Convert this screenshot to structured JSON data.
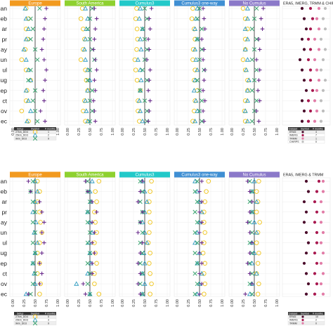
{
  "chart_data": [
    {
      "type": "scatter",
      "panel": "top",
      "months": [
        "an",
        "eb",
        "ar",
        "pr",
        "ay",
        "un",
        "ul",
        "ug",
        "ep",
        "ct",
        "ov",
        "ec"
      ],
      "ticks": [
        "0.00",
        "0.25",
        "0.50",
        "0.75",
        "1.00"
      ],
      "xlim": [
        0,
        1
      ],
      "reference_x": 0.5,
      "facets": [
        {
          "title": "Europe",
          "color": "#f29a1f"
        },
        {
          "title": "South America",
          "color": "#8ed12f"
        },
        {
          "title": "Cumulus3",
          "color": "#22c9c9"
        },
        {
          "title": "Cumulus3 one-way",
          "color": "#3f8fd3"
        },
        {
          "title": "No Cumulus",
          "color": "#8b79c9"
        }
      ],
      "series": [
        {
          "setup": "27km_DD4",
          "symbol": "circle",
          "color": "#f0c419",
          "values": [
            [
              0.3,
              0.35,
              0.3,
              0.33,
              0.28,
              0.2,
              0.3,
              0.4,
              0.32,
              0.3,
              0.2,
              0.35
            ],
            [
              0.33,
              0.3,
              0.35,
              0.38,
              0.35,
              0.3,
              0.4,
              0.42,
              0.45,
              0.38,
              0.35,
              0.4
            ],
            [
              0.32,
              0.3,
              0.33,
              0.34,
              0.32,
              0.28,
              0.3,
              0.33,
              0.4,
              0.35,
              0.35,
              0.38
            ],
            [
              0.35,
              0.33,
              0.38,
              0.4,
              0.36,
              0.35,
              0.4,
              0.38,
              0.45,
              0.4,
              0.38,
              0.35
            ],
            [
              0.25,
              0.3,
              0.35,
              0.3,
              0.3,
              0.25,
              0.3,
              0.35,
              0.35,
              0.3,
              0.28,
              0.3
            ]
          ]
        },
        {
          "setup": "25km_DD3",
          "symbol": "triangle",
          "color": "#2f9bc1",
          "values": [
            [
              0.28,
              0.3,
              0.35,
              0.3,
              0.25,
              0.3,
              0.35,
              0.4,
              0.3,
              0.35,
              0.4,
              0.32
            ],
            [
              0.4,
              0.45,
              0.42,
              0.4,
              0.38,
              0.4,
              0.45,
              0.5,
              0.45,
              0.4,
              0.42,
              0.45
            ],
            [
              0.4,
              0.38,
              0.45,
              0.4,
              0.42,
              0.35,
              0.4,
              0.42,
              0.4,
              0.38,
              0.4,
              0.45
            ],
            [
              0.45,
              0.42,
              0.4,
              0.45,
              0.4,
              0.42,
              0.45,
              0.4,
              0.38,
              0.42,
              0.45,
              0.4
            ],
            [
              0.35,
              0.35,
              0.3,
              0.35,
              0.3,
              0.35,
              0.32,
              0.38,
              0.35,
              0.35,
              0.3,
              0.35
            ]
          ]
        },
        {
          "setup": "9km_DD3",
          "symbol": "cross",
          "color": "#3aa36f",
          "values": [
            [
              0.6,
              0.4,
              0.45,
              0.4,
              0.5,
              0.55,
              0.4,
              0.35,
              0.5,
              0.45,
              0.5,
              0.55
            ],
            [
              0.55,
              0.5,
              0.45,
              0.5,
              0.55,
              0.6,
              0.5,
              0.45,
              0.55,
              0.5,
              0.55,
              0.5
            ],
            [
              0.5,
              0.55,
              0.45,
              0.5,
              0.55,
              0.5,
              0.45,
              0.55,
              0.4,
              0.5,
              0.55,
              0.55
            ],
            [
              0.5,
              0.45,
              0.55,
              0.45,
              0.55,
              0.5,
              0.6,
              0.45,
              0.5,
              0.55,
              0.5,
              0.55
            ],
            [
              0.55,
              0.5,
              0.45,
              0.55,
              0.5,
              0.45,
              0.55,
              0.5,
              0.45,
              0.55,
              0.5,
              0.45
            ]
          ]
        },
        {
          "setup": "9km_DD3 (plus)",
          "symbol": "plus",
          "color": "#6a2c8c",
          "values": [
            [
              0.75,
              0.72,
              0.7,
              0.68,
              0.65,
              0.7,
              0.75,
              0.72,
              0.68,
              0.7,
              0.62,
              0.72
            ],
            [
              0.6,
              0.65,
              0.62,
              0.6,
              0.58,
              0.62,
              0.65,
              0.6,
              0.62,
              0.58,
              0.6,
              0.62
            ],
            [
              0.65,
              0.6,
              0.62,
              0.58,
              0.6,
              0.55,
              0.62,
              0.6,
              0.58,
              0.62,
              0.6,
              0.58
            ],
            [
              0.58,
              0.6,
              0.62,
              0.55,
              0.6,
              0.58,
              0.62,
              0.6,
              0.58,
              0.62,
              0.58,
              0.6
            ],
            [
              0.7,
              0.65,
              0.68,
              0.6,
              0.62,
              0.55,
              0.62,
              0.6,
              0.58,
              0.62,
              0.55,
              0.6
            ]
          ]
        }
      ],
      "legend": {
        "headers": [
          "Setup",
          "Symbol",
          "# months"
        ],
        "rows": [
          {
            "setup": "27km_DD4",
            "count": "1"
          },
          {
            "setup": "25km_DD3",
            "count": "2"
          },
          {
            "setup": "9km_DD3",
            "count": "9"
          }
        ]
      },
      "observations": {
        "title": "ERA5, IMERG, TRMM & CHIRPS",
        "legend_headers": [
          "Dataset",
          "Symbol",
          "# months"
        ],
        "datasets": [
          {
            "name": "ERA5",
            "color": "#4a0a2a",
            "count": "4"
          },
          {
            "name": "IMERG",
            "color": "#a8184f",
            "count": "7"
          },
          {
            "name": "TRMM",
            "color": "#e27ca7",
            "count": "1"
          },
          {
            "name": "CHIRPS",
            "color": "#bdbdbd",
            "count": "0"
          }
        ],
        "values": [
          [
            0.4,
            0.6,
            0.8,
            0.95
          ],
          [
            0.45,
            0.65,
            0.75,
            0.9
          ],
          [
            0.5,
            0.6,
            0.8,
            0.95
          ],
          [
            0.4,
            0.55,
            0.7,
            0.85
          ],
          [
            0.45,
            0.6,
            0.8,
            0.95
          ],
          [
            0.35,
            0.55,
            0.7,
            0.9
          ],
          [
            0.4,
            0.6,
            0.75,
            0.85
          ],
          [
            0.45,
            0.6,
            0.8,
            0.95
          ],
          [
            0.5,
            0.65,
            0.75,
            0.9
          ],
          [
            0.4,
            0.55,
            0.7,
            0.85
          ],
          [
            0.45,
            0.6,
            0.75,
            0.9
          ],
          [
            0.4,
            0.55,
            0.7,
            0.85
          ]
        ]
      }
    },
    {
      "type": "scatter",
      "panel": "bottom",
      "months": [
        "an",
        "eb",
        "ar",
        "pr",
        "ay",
        "un",
        "ul",
        "ug",
        "ep",
        "ct",
        "ov",
        "ec"
      ],
      "ticks": [
        "0.00",
        "0.25",
        "0.50",
        "0.75",
        "1.00"
      ],
      "xlim": [
        0,
        1
      ],
      "reference_x": 0.5,
      "facets": [
        {
          "title": "Europe",
          "color": "#f29a1f"
        },
        {
          "title": "South America",
          "color": "#8ed12f"
        },
        {
          "title": "Cumulus3",
          "color": "#22c9c9"
        },
        {
          "title": "Cumulus3 one-way",
          "color": "#3f8fd3"
        },
        {
          "title": "No Cumulus",
          "color": "#8b79c9"
        }
      ],
      "series": [
        {
          "setup": "27km_DD4",
          "symbol": "circle",
          "color": "#f0c419",
          "values": [
            [
              0.55,
              0.6,
              0.55,
              0.6,
              0.62,
              0.65,
              0.6,
              0.55,
              0.6,
              0.55,
              0.62,
              0.6
            ],
            [
              0.7,
              0.62,
              0.65,
              0.6,
              0.62,
              0.65,
              0.6,
              0.62,
              0.65,
              0.6,
              0.6,
              0.7
            ],
            [
              0.65,
              0.62,
              0.6,
              0.6,
              0.62,
              0.6,
              0.58,
              0.62,
              0.6,
              0.62,
              0.65,
              0.62
            ],
            [
              0.7,
              0.65,
              0.62,
              0.6,
              0.6,
              0.62,
              0.6,
              0.58,
              0.62,
              0.6,
              0.62,
              0.6
            ],
            [
              0.6,
              0.55,
              0.58,
              0.55,
              0.62,
              0.58,
              0.55,
              0.6,
              0.58,
              0.55,
              0.6,
              0.58
            ]
          ]
        },
        {
          "setup": "25km_DD3",
          "symbol": "triangle",
          "color": "#2f9bc1",
          "values": [
            [
              0.5,
              0.55,
              0.5,
              0.45,
              0.52,
              0.48,
              0.55,
              0.5,
              0.45,
              0.48,
              0.5,
              0.3
            ],
            [
              0.55,
              0.5,
              0.52,
              0.45,
              0.5,
              0.55,
              0.48,
              0.5,
              0.52,
              0.45,
              0.2,
              0.5
            ],
            [
              0.45,
              0.5,
              0.55,
              0.5,
              0.45,
              0.5,
              0.55,
              0.48,
              0.5,
              0.45,
              0.5,
              0.45
            ],
            [
              0.4,
              0.45,
              0.5,
              0.55,
              0.5,
              0.45,
              0.4,
              0.5,
              0.45,
              0.55,
              0.5,
              0.45
            ],
            [
              0.5,
              0.45,
              0.55,
              0.45,
              0.5,
              0.55,
              0.45,
              0.5,
              0.45,
              0.55,
              0.45,
              0.4
            ]
          ]
        },
        {
          "setup": "9km_DD3",
          "symbol": "cross",
          "color": "#3aa36f",
          "values": [
            [
              0.45,
              0.4,
              0.45,
              0.5,
              0.45,
              0.5,
              0.45,
              0.5,
              0.45,
              0.5,
              0.45,
              0.4
            ],
            [
              0.45,
              0.45,
              0.5,
              0.45,
              0.45,
              0.5,
              0.45,
              0.5,
              0.45,
              0.5,
              0.45,
              0.5
            ],
            [
              0.4,
              0.45,
              0.4,
              0.45,
              0.4,
              0.45,
              0.4,
              0.45,
              0.4,
              0.45,
              0.4,
              0.45
            ],
            [
              0.45,
              0.4,
              0.45,
              0.4,
              0.45,
              0.4,
              0.45,
              0.4,
              0.45,
              0.4,
              0.45,
              0.4
            ],
            [
              0.4,
              0.45,
              0.4,
              0.45,
              0.4,
              0.45,
              0.4,
              0.45,
              0.4,
              0.45,
              0.4,
              0.45
            ]
          ]
        },
        {
          "setup": "9km_DD3 (plus)",
          "symbol": "plus",
          "color": "#6a2c8c",
          "values": [
            [
              0.35,
              0.4,
              0.6,
              0.65,
              0.7,
              0.65,
              0.7,
              0.65,
              0.6,
              0.65,
              0.6,
              0.35
            ],
            [
              0.4,
              0.45,
              0.55,
              0.65,
              0.55,
              0.6,
              0.55,
              0.6,
              0.55,
              0.55,
              0.35,
              0.4
            ],
            [
              0.45,
              0.4,
              0.35,
              0.45,
              0.4,
              0.35,
              0.45,
              0.4,
              0.35,
              0.4,
              0.35,
              0.4
            ],
            [
              0.55,
              0.5,
              0.55,
              0.5,
              0.55,
              0.5,
              0.55,
              0.5,
              0.55,
              0.5,
              0.55,
              0.5
            ],
            [
              0.35,
              0.4,
              0.45,
              0.4,
              0.35,
              0.4,
              0.45,
              0.4,
              0.35,
              0.4,
              0.45,
              0.3
            ]
          ]
        }
      ],
      "legend": {
        "headers": [
          "Setup",
          "Symbol",
          "# months"
        ],
        "rows": [
          {
            "setup": "27km_DD4",
            "count": "0"
          },
          {
            "setup": "25km_DD3",
            "count": "3"
          },
          {
            "setup": "9km_DD3",
            "count": "9"
          }
        ]
      },
      "observations": {
        "title": "ERA5, IMERG & TRMM",
        "legend_headers": [
          "Dataset",
          "Symbol",
          "# months"
        ],
        "datasets": [
          {
            "name": "ERA5",
            "color": "#4a0a2a",
            "count": "10"
          },
          {
            "name": "IMERG",
            "color": "#a8184f",
            "count": "2"
          },
          {
            "name": "TRMM",
            "color": "#e27ca7",
            "count": "0"
          }
        ],
        "values": [
          [
            0.5,
            0.8,
            0.9
          ],
          [
            0.55,
            0.75,
            0.9
          ],
          [
            0.45,
            0.7,
            0.85
          ],
          [
            0.5,
            0.75,
            0.9
          ],
          [
            0.45,
            0.7,
            0.85
          ],
          [
            0.5,
            0.75,
            0.9
          ],
          [
            0.55,
            0.75,
            0.85
          ],
          [
            0.5,
            0.7,
            0.9
          ],
          [
            0.45,
            0.75,
            0.85
          ],
          [
            0.5,
            0.7,
            0.9
          ],
          [
            0.55,
            0.75,
            0.85
          ],
          [
            0.5,
            0.7,
            0.9
          ]
        ]
      }
    }
  ]
}
